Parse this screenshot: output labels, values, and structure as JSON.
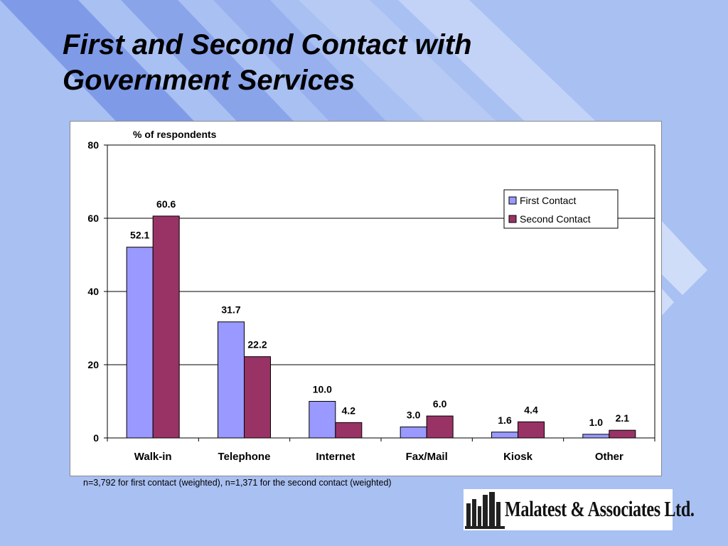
{
  "slide": {
    "title_line1": "First and Second Contact with",
    "title_line2": "Government Services",
    "footnote": "n=3,792 for first contact (weighted), n=1,371 for the second contact (weighted)",
    "logo_text": "Malatest & Associates Ltd."
  },
  "colors": {
    "background": "#a9c0f2",
    "first_contact": "#9999ff",
    "second_contact": "#993366"
  },
  "chart_data": {
    "type": "bar",
    "title": "",
    "ylabel": "% of respondents",
    "xlabel": "",
    "ylim": [
      0,
      80
    ],
    "yticks": [
      0,
      20,
      40,
      60,
      80
    ],
    "grid": true,
    "legend_position": "top-right",
    "categories": [
      "Walk-in",
      "Telephone",
      "Internet",
      "Fax/Mail",
      "Kiosk",
      "Other"
    ],
    "series": [
      {
        "name": "First Contact",
        "values": [
          52.1,
          31.7,
          10.0,
          3.0,
          1.6,
          1.0
        ],
        "labels": [
          "52.1",
          "31.7",
          "10.0",
          "3.0",
          "1.6",
          "1.0"
        ]
      },
      {
        "name": "Second Contact",
        "values": [
          60.6,
          22.2,
          4.2,
          6.0,
          4.4,
          2.1
        ],
        "labels": [
          "60.6",
          "22.2",
          "4.2",
          "6.0",
          "4.4",
          "2.1"
        ]
      }
    ]
  }
}
